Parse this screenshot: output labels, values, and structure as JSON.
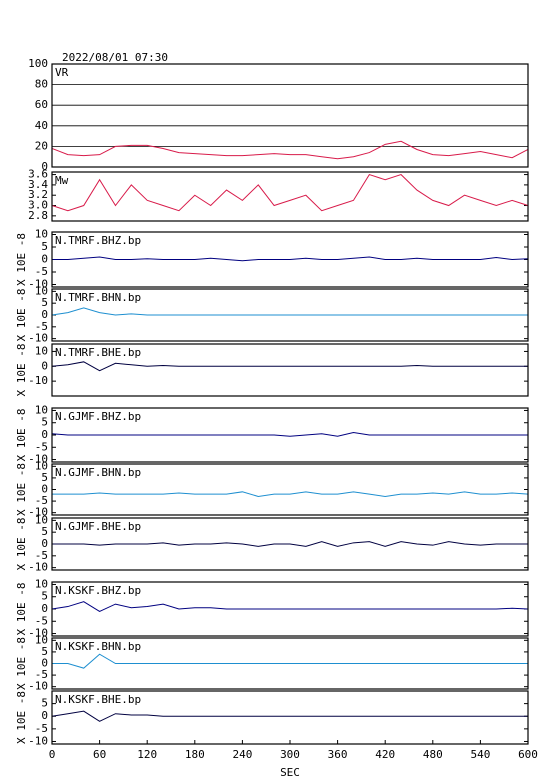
{
  "title": "2022/08/01 07:30",
  "chart_data": [
    {
      "type": "line",
      "title": "VR",
      "xlim": [
        0,
        600
      ],
      "ylim": [
        0,
        100
      ],
      "yticks": [
        0,
        20,
        40,
        60,
        80,
        100
      ],
      "grid": true,
      "color": "#d81b4a",
      "x": [
        0,
        20,
        40,
        60,
        80,
        100,
        120,
        140,
        160,
        180,
        200,
        220,
        240,
        260,
        280,
        300,
        320,
        340,
        360,
        380,
        400,
        420,
        440,
        460,
        480,
        500,
        520,
        540,
        560,
        580,
        600
      ],
      "values": [
        18,
        12,
        11,
        12,
        20,
        21,
        21,
        18,
        14,
        13,
        12,
        11,
        11,
        12,
        13,
        12,
        12,
        10,
        8,
        10,
        14,
        22,
        25,
        17,
        12,
        11,
        13,
        15,
        12,
        9,
        17
      ]
    },
    {
      "type": "line",
      "title": "Mw",
      "xlim": [
        0,
        600
      ],
      "ylim": [
        2.7,
        3.65
      ],
      "yticks": [
        2.8,
        {
          "value": 3,
          "label": "3.0"
        },
        3.2,
        3.4,
        3.6
      ],
      "grid": false,
      "color": "#d81b4a",
      "x": [
        0,
        20,
        40,
        60,
        80,
        100,
        120,
        140,
        160,
        180,
        200,
        220,
        240,
        260,
        280,
        300,
        320,
        340,
        360,
        380,
        400,
        420,
        440,
        460,
        480,
        500,
        520,
        540,
        560,
        580,
        600
      ],
      "values": [
        3.0,
        2.9,
        3.0,
        3.5,
        3.0,
        3.4,
        3.1,
        3.0,
        2.9,
        3.2,
        3.0,
        3.3,
        3.1,
        3.4,
        3.0,
        3.1,
        3.2,
        2.9,
        3.0,
        3.1,
        3.6,
        3.5,
        3.6,
        3.3,
        3.1,
        3.0,
        3.2,
        3.1,
        3.0,
        3.1,
        3.0
      ]
    },
    {
      "type": "line",
      "title": "N.TMRF.BHZ.bp",
      "ylabel": "X 10E -8",
      "xlim": [
        0,
        600
      ],
      "ylim": [
        -11,
        11
      ],
      "yticks": [
        10,
        5,
        0,
        -5,
        -10
      ],
      "grid": false,
      "color": "#000080",
      "x": [
        0,
        20,
        40,
        60,
        80,
        100,
        120,
        140,
        160,
        180,
        200,
        220,
        240,
        260,
        280,
        300,
        320,
        340,
        360,
        380,
        400,
        420,
        440,
        460,
        480,
        500,
        520,
        540,
        560,
        580,
        600
      ],
      "values": [
        0,
        0,
        0.5,
        1,
        0,
        0,
        0.3,
        0,
        0,
        0,
        0.5,
        0,
        -0.5,
        0,
        0,
        0,
        0.5,
        0,
        0,
        0.5,
        1,
        0,
        0,
        0.5,
        0,
        0,
        0,
        0,
        0.8,
        0,
        0.3
      ]
    },
    {
      "type": "line",
      "title": "N.TMRF.BHN.bp",
      "ylabel": "X 10E -8",
      "xlim": [
        0,
        600
      ],
      "ylim": [
        -11,
        11
      ],
      "yticks": [
        10,
        5,
        0,
        -5,
        -10
      ],
      "grid": false,
      "color": "#1e8fd0",
      "x": [
        0,
        20,
        40,
        60,
        80,
        100,
        120,
        140,
        160,
        180,
        200,
        220,
        240,
        260,
        280,
        300,
        320,
        340,
        360,
        380,
        400,
        420,
        440,
        460,
        480,
        500,
        520,
        540,
        560,
        580,
        600
      ],
      "values": [
        0,
        1,
        3,
        1,
        0,
        0.5,
        0,
        0,
        0,
        0,
        0,
        0,
        0,
        0,
        0,
        0,
        0,
        0,
        0,
        0,
        0,
        0,
        0,
        0,
        0,
        0,
        0,
        0,
        0,
        0,
        0
      ]
    },
    {
      "type": "line",
      "title": "N.TMRF.BHE.bp",
      "ylabel": "X 10E -8",
      "xlim": [
        0,
        600
      ],
      "ylim": [
        -20,
        15
      ],
      "yticks": [
        10,
        0,
        -10
      ],
      "grid": false,
      "color": "#000040",
      "x": [
        0,
        20,
        40,
        60,
        80,
        100,
        120,
        140,
        160,
        180,
        200,
        220,
        240,
        260,
        280,
        300,
        320,
        340,
        360,
        380,
        400,
        420,
        440,
        460,
        480,
        500,
        520,
        540,
        560,
        580,
        600
      ],
      "values": [
        0,
        1,
        3,
        -3,
        2,
        1,
        0,
        0.5,
        0,
        0,
        0,
        0,
        0,
        0,
        0,
        0,
        0,
        0,
        0,
        0,
        0,
        0,
        0,
        0.5,
        0,
        0,
        0,
        0,
        0,
        0,
        0
      ]
    },
    {
      "type": "line",
      "title": "N.GJMF.BHZ.bp",
      "ylabel": "X 10E -8",
      "xlim": [
        0,
        600
      ],
      "ylim": [
        -11,
        11
      ],
      "yticks": [
        10,
        5,
        0,
        -5,
        -10
      ],
      "grid": false,
      "color": "#000080",
      "x": [
        0,
        20,
        40,
        60,
        80,
        100,
        120,
        140,
        160,
        180,
        200,
        220,
        240,
        260,
        280,
        300,
        320,
        340,
        360,
        380,
        400,
        420,
        440,
        460,
        480,
        500,
        520,
        540,
        560,
        580,
        600
      ],
      "values": [
        0.5,
        0,
        0,
        0,
        0,
        0,
        0,
        0,
        0,
        0,
        0,
        0,
        0,
        0,
        0,
        -0.5,
        0,
        0.5,
        -0.5,
        1,
        0,
        0,
        0,
        0,
        0,
        0,
        0,
        0,
        0,
        0,
        0
      ]
    },
    {
      "type": "line",
      "title": "N.GJMF.BHN.bp",
      "ylabel": "X 10E -8",
      "xlim": [
        0,
        600
      ],
      "ylim": [
        -11,
        11
      ],
      "yticks": [
        10,
        5,
        0,
        -5,
        -10
      ],
      "grid": false,
      "color": "#1e8fd0",
      "x": [
        0,
        20,
        40,
        60,
        80,
        100,
        120,
        140,
        160,
        180,
        200,
        220,
        240,
        260,
        280,
        300,
        320,
        340,
        360,
        380,
        400,
        420,
        440,
        460,
        480,
        500,
        520,
        540,
        560,
        580,
        600
      ],
      "values": [
        -2,
        -2,
        -2,
        -1.5,
        -2,
        -2,
        -2,
        -2,
        -1.5,
        -2,
        -2,
        -2,
        -1,
        -3,
        -2,
        -2,
        -1,
        -2,
        -2,
        -1,
        -2,
        -3,
        -2,
        -2,
        -1.5,
        -2,
        -1,
        -2,
        -2,
        -1.5,
        -2
      ]
    },
    {
      "type": "line",
      "title": "N.GJMF.BHE.bp",
      "ylabel": "X 10E -8",
      "xlim": [
        0,
        600
      ],
      "ylim": [
        -11,
        11
      ],
      "yticks": [
        10,
        5,
        0,
        -5,
        -10
      ],
      "grid": false,
      "color": "#000040",
      "x": [
        0,
        20,
        40,
        60,
        80,
        100,
        120,
        140,
        160,
        180,
        200,
        220,
        240,
        260,
        280,
        300,
        320,
        340,
        360,
        380,
        400,
        420,
        440,
        460,
        480,
        500,
        520,
        540,
        560,
        580,
        600
      ],
      "values": [
        0,
        0,
        0,
        -0.5,
        0,
        0,
        0,
        0.5,
        -0.5,
        0,
        0,
        0.5,
        0,
        -1,
        0,
        0,
        -1,
        1,
        -1,
        0.5,
        1,
        -1,
        1,
        0,
        -0.5,
        1,
        0,
        -0.5,
        0,
        0,
        0
      ]
    },
    {
      "type": "line",
      "title": "N.KSKF.BHZ.bp",
      "ylabel": "X 10E -8",
      "xlim": [
        0,
        600
      ],
      "ylim": [
        -11,
        11
      ],
      "yticks": [
        10,
        5,
        0,
        -5,
        -10
      ],
      "grid": false,
      "color": "#000080",
      "x": [
        0,
        20,
        40,
        60,
        80,
        100,
        120,
        140,
        160,
        180,
        200,
        220,
        240,
        260,
        280,
        300,
        320,
        340,
        360,
        380,
        400,
        420,
        440,
        460,
        480,
        500,
        520,
        540,
        560,
        580,
        600
      ],
      "values": [
        0,
        1,
        3,
        -1,
        2,
        0.5,
        1,
        2,
        0,
        0.5,
        0.5,
        0,
        0,
        0,
        0,
        0,
        0,
        0,
        0,
        0,
        0,
        0,
        0,
        0,
        0,
        0,
        0,
        0,
        0,
        0.3,
        0
      ]
    },
    {
      "type": "line",
      "title": "N.KSKF.BHN.bp",
      "ylabel": "X 10E -8",
      "xlim": [
        0,
        600
      ],
      "ylim": [
        -11,
        11
      ],
      "yticks": [
        10,
        5,
        0,
        -5,
        -10
      ],
      "grid": false,
      "color": "#1e8fd0",
      "x": [
        0,
        20,
        40,
        60,
        80,
        100,
        120,
        140,
        160,
        180,
        200,
        220,
        240,
        260,
        280,
        300,
        320,
        340,
        360,
        380,
        400,
        420,
        440,
        460,
        480,
        500,
        520,
        540,
        560,
        580,
        600
      ],
      "values": [
        0,
        0,
        -2,
        4,
        0,
        0,
        0,
        0,
        0,
        0,
        0,
        0,
        0,
        0,
        0,
        0,
        0,
        0,
        0,
        0,
        0,
        0,
        0,
        0,
        0,
        0,
        0,
        0,
        0,
        0,
        0
      ]
    },
    {
      "type": "line",
      "title": "N.KSKF.BHE.bp",
      "ylabel": "X 10E -8",
      "xlabel": "SEC",
      "xlim": [
        0,
        600
      ],
      "xticks": [
        0,
        60,
        120,
        180,
        240,
        300,
        360,
        420,
        480,
        540,
        600
      ],
      "ylim": [
        -11,
        10
      ],
      "yticks": [
        5,
        0,
        -5,
        -10
      ],
      "grid": false,
      "color": "#000040",
      "x": [
        0,
        20,
        40,
        60,
        80,
        100,
        120,
        140,
        160,
        180,
        200,
        220,
        240,
        260,
        280,
        300,
        320,
        340,
        360,
        380,
        400,
        420,
        440,
        460,
        480,
        500,
        520,
        540,
        560,
        580,
        600
      ],
      "values": [
        0,
        1,
        2,
        -2,
        1,
        0.5,
        0.5,
        0,
        0,
        0,
        0,
        0,
        0,
        0,
        0,
        0,
        0,
        0,
        0,
        0,
        0,
        0,
        0,
        0,
        0,
        0,
        0,
        0,
        0,
        0,
        0
      ]
    }
  ]
}
